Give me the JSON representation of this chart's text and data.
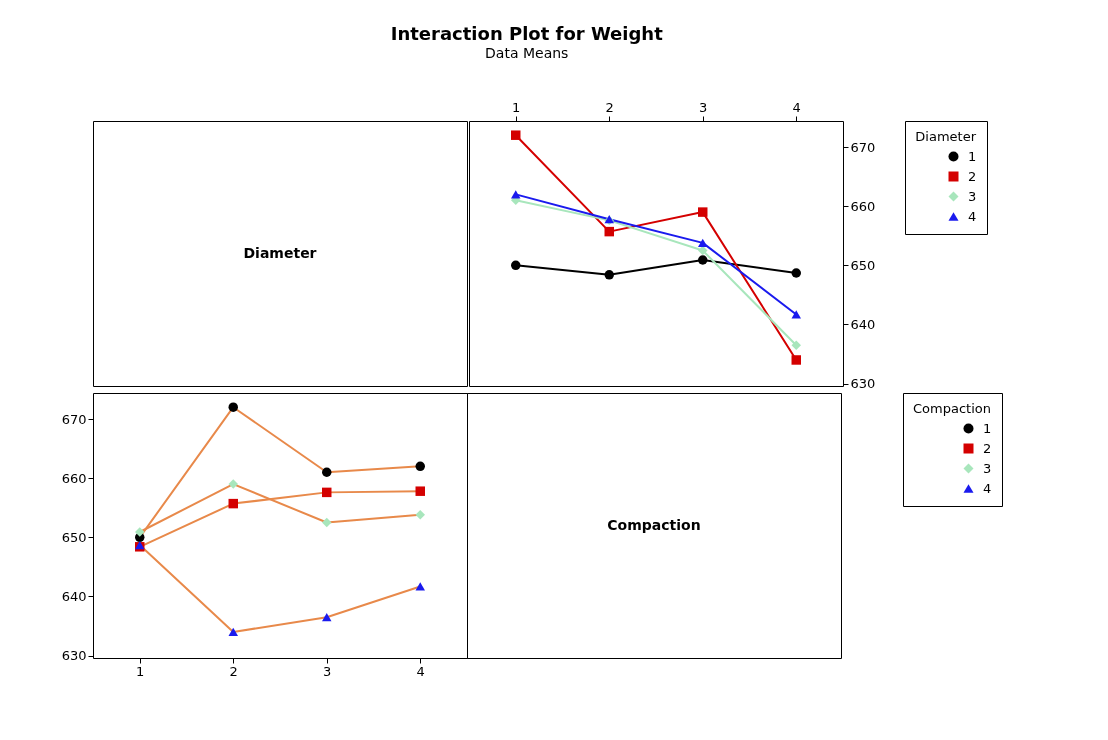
{
  "chart_data": [
    {
      "type": "other",
      "title": "Interaction Plot for Weight",
      "subtitle": "Data Means",
      "annotations": [
        "Diameter"
      ]
    },
    {
      "type": "line",
      "categories": [
        "1",
        "2",
        "3",
        "4"
      ],
      "ylim": [
        629.6,
        674.4
      ],
      "yticks": [
        630,
        640,
        650,
        660,
        670
      ],
      "legend": "right",
      "legend_title": "Diameter",
      "series": [
        {
          "name": "1",
          "color": "#000000",
          "marker": "circle",
          "values": [
            650,
            648.4,
            650.9,
            648.7
          ]
        },
        {
          "name": "2",
          "color": "#d40000",
          "marker": "square",
          "values": [
            672,
            655.7,
            659,
            634
          ]
        },
        {
          "name": "3",
          "color": "#a8e6bc",
          "marker": "diamond",
          "values": [
            661,
            657.6,
            652.5,
            636.5
          ]
        },
        {
          "name": "4",
          "color": "#1a1aee",
          "marker": "triangle",
          "values": [
            662,
            657.8,
            653.8,
            641.7
          ]
        }
      ]
    },
    {
      "type": "line",
      "categories": [
        "1",
        "2",
        "3",
        "4"
      ],
      "ylim": [
        629.6,
        674.4
      ],
      "yticks": [
        630,
        640,
        650,
        660,
        670
      ],
      "legend": "right",
      "legend_title": "Compaction",
      "series": [
        {
          "name": "1",
          "color": "#e8894a",
          "colors": [
            "#000000",
            "#000000",
            "#000000",
            "#000000"
          ],
          "marker": "circle",
          "values": [
            650,
            672,
            661,
            662
          ]
        },
        {
          "name": "2",
          "color": "#e8894a",
          "colors": [
            "#d40000",
            "#d40000",
            "#d40000",
            "#d40000"
          ],
          "marker": "square",
          "values": [
            648.4,
            655.7,
            657.6,
            657.8
          ]
        },
        {
          "name": "3",
          "color": "#e8894a",
          "colors": [
            "#a8e6bc",
            "#a8e6bc",
            "#a8e6bc",
            "#a8e6bc"
          ],
          "marker": "diamond",
          "values": [
            650.9,
            659,
            652.5,
            653.8
          ]
        },
        {
          "name": "4",
          "color": "#e8894a",
          "colors": [
            "#1a1aee",
            "#1a1aee",
            "#1a1aee",
            "#1a1aee"
          ],
          "marker": "triangle",
          "values": [
            648.7,
            634,
            636.5,
            641.7
          ]
        }
      ]
    },
    {
      "type": "other",
      "annotations": [
        "Compaction"
      ]
    }
  ]
}
